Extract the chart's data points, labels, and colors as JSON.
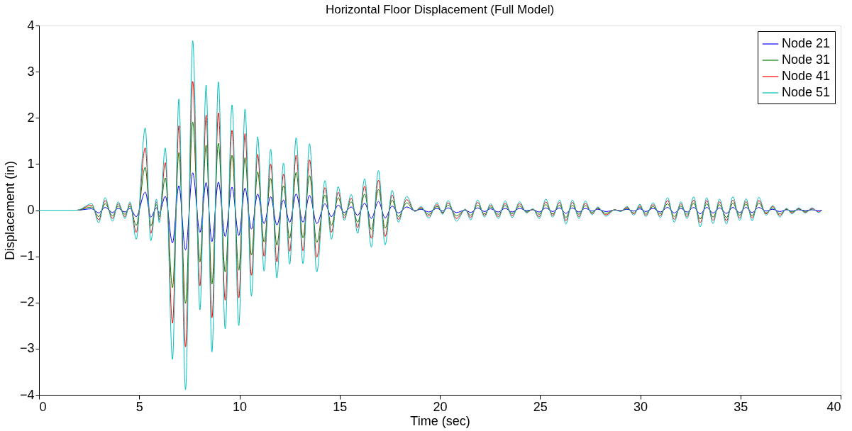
{
  "chart_data": {
    "type": "line",
    "title": "Horizontal Floor Displacement (Full Model)",
    "xlabel": "Time (sec)",
    "ylabel": "Displacement (in)",
    "x": [
      0,
      1.9,
      2.63,
      2.98,
      3.3,
      3.67,
      3.95,
      4.29,
      4.54,
      4.85,
      5.3,
      5.58,
      5.86,
      6.0,
      6.3,
      6.66,
      6.98,
      7.31,
      7.67,
      8.03,
      8.34,
      8.63,
      8.95,
      9.29,
      9.63,
      9.97,
      10.28,
      10.6,
      10.91,
      11.23,
      11.56,
      11.87,
      12.2,
      12.51,
      12.83,
      13.17,
      13.5,
      13.86,
      14.27,
      14.59,
      14.93,
      15.23,
      15.58,
      15.9,
      16.25,
      16.58,
      16.94,
      17.27,
      17.62,
      17.93,
      18.35,
      18.76,
      19.06,
      19.45,
      19.86,
      20.14,
      20.41,
      20.83,
      21.27,
      21.54,
      21.89,
      22.23,
      22.53,
      22.92,
      23.26,
      23.61,
      23.98,
      24.33,
      24.64,
      24.96,
      25.29,
      25.63,
      25.98,
      26.29,
      26.61,
      26.94,
      27.26,
      27.6,
      27.88,
      28.29,
      28.72,
      29.02,
      29.34,
      29.68,
      29.98,
      30.28,
      30.64,
      31.0,
      31.37,
      31.7,
      32.03,
      32.33,
      32.67,
      32.99,
      33.32,
      33.63,
      33.96,
      34.3,
      34.62,
      34.96,
      35.28,
      35.58,
      35.92,
      36.28,
      36.61,
      36.97,
      37.3,
      37.57,
      37.9,
      38.24,
      38.57,
      38.9,
      39.06
    ],
    "series": [
      {
        "name": "Node 21",
        "color": "#0000ff",
        "values": [
          0,
          0,
          0.03,
          -0.06,
          0.06,
          -0.05,
          0.04,
          -0.04,
          0.04,
          -0.14,
          0.39,
          -0.15,
          0.05,
          -0.06,
          0.3,
          -0.71,
          0.53,
          -0.86,
          0.81,
          -0.48,
          0.6,
          -0.68,
          0.61,
          -0.57,
          0.5,
          -0.55,
          0.48,
          -0.41,
          0.35,
          -0.29,
          0.29,
          -0.32,
          0.22,
          -0.26,
          0.35,
          -0.26,
          0.32,
          -0.29,
          0.14,
          -0.14,
          0.11,
          -0.05,
          0.07,
          -0.11,
          0.15,
          -0.18,
          0.19,
          -0.17,
          0.09,
          -0.06,
          0.07,
          -0.01,
          0.02,
          -0.04,
          0.04,
          -0.02,
          0.05,
          -0.05,
          0.0,
          -0.05,
          0.05,
          -0.03,
          0.03,
          -0.04,
          0.04,
          -0.04,
          0.04,
          -0.01,
          0.01,
          -0.04,
          0.05,
          -0.03,
          0.05,
          -0.07,
          0.05,
          -0.04,
          0.04,
          -0.02,
          0.02,
          -0.03,
          0.0,
          -0.01,
          0.02,
          -0.02,
          0.03,
          -0.03,
          0.04,
          -0.04,
          0.06,
          -0.06,
          0.04,
          -0.04,
          0.06,
          -0.08,
          0.06,
          -0.06,
          0.05,
          -0.07,
          0.06,
          -0.05,
          0.06,
          -0.05,
          0.06,
          -0.02,
          0.02,
          -0.03,
          0.01,
          -0.02,
          0.01,
          -0.01,
          0.01,
          -0.01,
          0
        ]
      },
      {
        "name": "Node 31",
        "color": "#008000",
        "values": [
          0,
          0,
          0.07,
          -0.14,
          0.14,
          -0.12,
          0.09,
          -0.09,
          0.09,
          -0.33,
          0.93,
          -0.34,
          0.12,
          -0.14,
          0.7,
          -1.68,
          1.25,
          -2.02,
          1.91,
          -1.12,
          1.41,
          -1.6,
          1.45,
          -1.34,
          1.19,
          -1.3,
          1.14,
          -0.97,
          0.83,
          -0.69,
          0.69,
          -0.76,
          0.53,
          -0.61,
          0.82,
          -0.6,
          0.75,
          -0.7,
          0.33,
          -0.33,
          0.27,
          -0.11,
          0.18,
          -0.26,
          0.35,
          -0.42,
          0.45,
          -0.39,
          0.22,
          -0.14,
          0.16,
          -0.02,
          0.04,
          -0.09,
          0.08,
          -0.05,
          0.11,
          -0.12,
          0.01,
          -0.11,
          0.11,
          -0.08,
          0.07,
          -0.09,
          0.1,
          -0.08,
          0.09,
          -0.03,
          0.02,
          -0.09,
          0.12,
          -0.08,
          0.11,
          -0.16,
          0.11,
          -0.09,
          0.1,
          -0.05,
          0.04,
          -0.07,
          0.01,
          -0.02,
          0.04,
          -0.06,
          0.07,
          -0.07,
          0.08,
          -0.08,
          0.14,
          -0.14,
          0.09,
          -0.09,
          0.15,
          -0.19,
          0.14,
          -0.15,
          0.12,
          -0.16,
          0.15,
          -0.11,
          0.13,
          -0.12,
          0.15,
          -0.06,
          0.05,
          -0.08,
          0.02,
          -0.04,
          0.03,
          -0.03,
          0.03,
          null,
          null
        ]
      },
      {
        "name": "Node 41",
        "color": "#ff0000",
        "values": [
          0,
          0,
          0.11,
          -0.21,
          0.21,
          -0.18,
          0.14,
          -0.14,
          0.14,
          -0.48,
          1.35,
          -0.5,
          0.18,
          -0.21,
          1.03,
          -2.45,
          1.83,
          -2.96,
          2.79,
          -1.64,
          2.06,
          -2.33,
          2.11,
          -1.95,
          1.73,
          -1.9,
          1.66,
          -1.41,
          1.21,
          -1.0,
          1.0,
          -1.12,
          0.78,
          -0.89,
          1.19,
          -0.88,
          1.09,
          -1.02,
          0.49,
          -0.48,
          0.39,
          -0.17,
          0.26,
          -0.38,
          0.52,
          -0.61,
          0.65,
          -0.57,
          0.33,
          -0.2,
          0.23,
          -0.02,
          0.06,
          -0.13,
          0.12,
          -0.07,
          0.16,
          -0.18,
          0.02,
          -0.16,
          0.17,
          -0.11,
          0.11,
          -0.14,
          0.15,
          -0.12,
          0.14,
          -0.05,
          0.02,
          -0.14,
          0.18,
          -0.11,
          0.17,
          -0.23,
          0.17,
          -0.14,
          0.15,
          -0.08,
          0.05,
          -0.1,
          0.01,
          -0.02,
          0.06,
          -0.08,
          0.1,
          -0.11,
          0.12,
          -0.12,
          0.21,
          -0.2,
          0.14,
          -0.14,
          0.22,
          -0.27,
          0.21,
          -0.22,
          0.18,
          -0.23,
          0.22,
          -0.17,
          0.19,
          -0.17,
          0.21,
          -0.08,
          0.08,
          -0.11,
          0.03,
          -0.06,
          0.04,
          -0.05,
          0.04,
          -0.04,
          0
        ]
      },
      {
        "name": "Node 51",
        "color": "#00bfbf",
        "values": [
          0,
          0,
          0.14,
          -0.27,
          0.27,
          -0.24,
          0.18,
          -0.18,
          0.18,
          -0.63,
          1.78,
          -0.66,
          0.24,
          -0.27,
          1.35,
          -3.23,
          2.41,
          -3.89,
          3.67,
          -2.16,
          2.71,
          -3.07,
          2.78,
          -2.57,
          2.28,
          -2.5,
          2.19,
          -1.86,
          1.59,
          -1.32,
          1.32,
          -1.47,
          1.02,
          -1.17,
          1.57,
          -1.16,
          1.44,
          -1.34,
          0.64,
          -0.63,
          0.51,
          -0.22,
          0.34,
          -0.5,
          0.68,
          -0.8,
          0.86,
          -0.75,
          0.43,
          -0.26,
          0.3,
          -0.03,
          0.08,
          -0.17,
          0.16,
          -0.09,
          0.21,
          -0.24,
          0.02,
          -0.21,
          0.22,
          -0.15,
          0.14,
          -0.18,
          0.2,
          -0.16,
          0.18,
          -0.06,
          0.03,
          -0.18,
          0.24,
          -0.15,
          0.22,
          -0.3,
          0.22,
          -0.18,
          0.2,
          -0.1,
          0.07,
          -0.13,
          0.01,
          -0.03,
          0.08,
          -0.11,
          0.13,
          -0.14,
          0.16,
          -0.16,
          0.27,
          -0.26,
          0.18,
          -0.18,
          0.29,
          -0.36,
          0.27,
          -0.29,
          0.24,
          -0.3,
          0.29,
          -0.22,
          0.25,
          -0.23,
          0.28,
          -0.11,
          0.1,
          -0.15,
          0.04,
          -0.08,
          0.05,
          -0.06,
          0.05,
          -0.05,
          0
        ]
      }
    ],
    "xlim": [
      0,
      40
    ],
    "xticks": [
      0,
      5,
      10,
      15,
      20,
      25,
      30,
      35,
      40
    ],
    "ylim": [
      -4,
      4
    ],
    "yticks": [
      -4,
      -3,
      -2,
      -1,
      0,
      1,
      2,
      3,
      4
    ],
    "grid": false,
    "legend": "top right",
    "line_style": "solid"
  }
}
